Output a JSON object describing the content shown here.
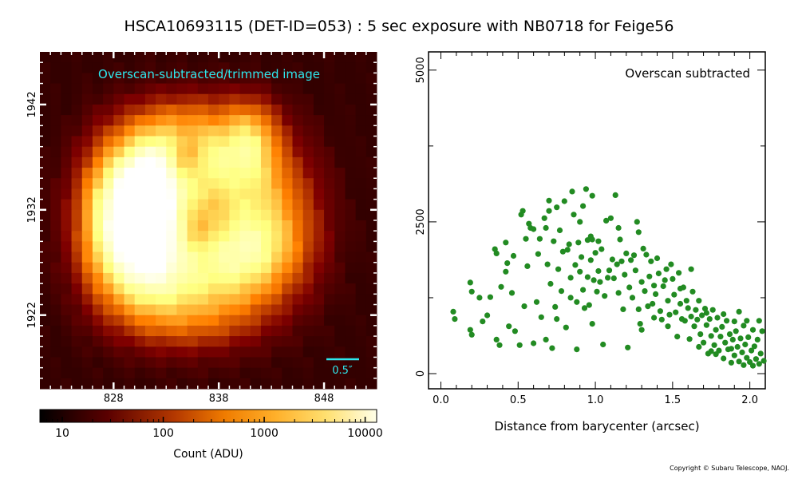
{
  "title": "HSCA10693115 (DET-ID=053) :  5 sec exposure with NB0718 for Feige56",
  "copyright": "Copyright © Subaru Telescope, NAOJ.",
  "image_panel": {
    "label": "Overscan-subtracted/trimmed image",
    "scale_bar": "0.5″",
    "x_ticks": [
      "828",
      "838",
      "848"
    ],
    "y_ticks": [
      "1942",
      "1932",
      "1922"
    ],
    "x_range": [
      821,
      853
    ],
    "y_range": [
      1915,
      1947
    ],
    "colorbar": {
      "label": "Count (ADU)",
      "ticks": [
        "10",
        "100",
        "1000",
        "10000"
      ],
      "scale": "log",
      "range": [
        6,
        13000
      ],
      "colormap": "afmhot"
    }
  },
  "chart_data": {
    "type": "scatter",
    "annotation": "Overscan subtracted",
    "xlabel": "Distance from barycenter (arcsec)",
    "ylabel": "",
    "xlim": [
      -0.08,
      2.1
    ],
    "ylim": [
      -250,
      5300
    ],
    "x_ticks": [
      "0.0",
      "0.5",
      "1.0",
      "1.5",
      "2.0"
    ],
    "y_ticks": [
      "0",
      "2500",
      "5000"
    ],
    "color": "#228b22",
    "grid": false,
    "series": [
      {
        "values": [
          [
            0.08,
            1020
          ],
          [
            0.09,
            900
          ],
          [
            0.19,
            1500
          ],
          [
            0.2,
            1350
          ],
          [
            0.19,
            720
          ],
          [
            0.2,
            640
          ],
          [
            0.25,
            1250
          ],
          [
            0.27,
            860
          ],
          [
            0.3,
            960
          ],
          [
            0.32,
            1260
          ],
          [
            0.35,
            2050
          ],
          [
            0.36,
            1980
          ],
          [
            0.36,
            560
          ],
          [
            0.38,
            470
          ],
          [
            0.39,
            1430
          ],
          [
            0.42,
            1680
          ],
          [
            0.42,
            2160
          ],
          [
            0.43,
            1820
          ],
          [
            0.44,
            780
          ],
          [
            0.46,
            1330
          ],
          [
            0.47,
            1940
          ],
          [
            0.48,
            700
          ],
          [
            0.51,
            470
          ],
          [
            0.52,
            2620
          ],
          [
            0.53,
            2680
          ],
          [
            0.54,
            1110
          ],
          [
            0.55,
            2220
          ],
          [
            0.56,
            1770
          ],
          [
            0.57,
            2470
          ],
          [
            0.58,
            2400
          ],
          [
            0.6,
            2380
          ],
          [
            0.6,
            500
          ],
          [
            0.62,
            1180
          ],
          [
            0.63,
            1970
          ],
          [
            0.64,
            2220
          ],
          [
            0.65,
            930
          ],
          [
            0.67,
            2560
          ],
          [
            0.68,
            2400
          ],
          [
            0.68,
            560
          ],
          [
            0.69,
            1800
          ],
          [
            0.7,
            2850
          ],
          [
            0.7,
            2680
          ],
          [
            0.71,
            1480
          ],
          [
            0.72,
            420
          ],
          [
            0.73,
            2180
          ],
          [
            0.75,
            900
          ],
          [
            0.75,
            2740
          ],
          [
            0.76,
            1720
          ],
          [
            0.77,
            2360
          ],
          [
            0.78,
            1360
          ],
          [
            0.79,
            2010
          ],
          [
            0.8,
            2840
          ],
          [
            0.81,
            760
          ],
          [
            0.82,
            2040
          ],
          [
            0.83,
            2130
          ],
          [
            0.84,
            1250
          ],
          [
            0.84,
            1580
          ],
          [
            0.85,
            3000
          ],
          [
            0.86,
            2620
          ],
          [
            0.87,
            1790
          ],
          [
            0.88,
            1180
          ],
          [
            0.88,
            400
          ],
          [
            0.89,
            2160
          ],
          [
            0.9,
            2500
          ],
          [
            0.9,
            1680
          ],
          [
            0.91,
            1920
          ],
          [
            0.92,
            1380
          ],
          [
            0.92,
            2760
          ],
          [
            0.93,
            1080
          ],
          [
            0.94,
            3040
          ],
          [
            0.95,
            2200
          ],
          [
            0.95,
            1590
          ],
          [
            0.96,
            1130
          ],
          [
            0.97,
            2260
          ],
          [
            0.97,
            1870
          ],
          [
            0.98,
            2210
          ],
          [
            0.98,
            2930
          ],
          [
            0.99,
            1540
          ],
          [
            1.0,
            1990
          ],
          [
            1.01,
            1350
          ],
          [
            1.02,
            2180
          ],
          [
            1.02,
            1690
          ],
          [
            1.03,
            1510
          ],
          [
            1.04,
            2050
          ],
          [
            1.05,
            480
          ],
          [
            1.06,
            1280
          ],
          [
            1.07,
            2520
          ],
          [
            1.08,
            1580
          ],
          [
            1.09,
            1700
          ],
          [
            1.1,
            2560
          ],
          [
            1.11,
            1880
          ],
          [
            1.12,
            1570
          ],
          [
            1.13,
            2940
          ],
          [
            1.14,
            1800
          ],
          [
            1.15,
            2400
          ],
          [
            1.15,
            1330
          ],
          [
            1.16,
            2210
          ],
          [
            1.17,
            1850
          ],
          [
            1.18,
            1060
          ],
          [
            1.19,
            1630
          ],
          [
            1.2,
            1980
          ],
          [
            1.21,
            430
          ],
          [
            1.22,
            1420
          ],
          [
            1.23,
            1870
          ],
          [
            1.24,
            1250
          ],
          [
            1.25,
            1950
          ],
          [
            1.26,
            1700
          ],
          [
            1.27,
            2500
          ],
          [
            1.28,
            2330
          ],
          [
            1.28,
            1060
          ],
          [
            1.29,
            820
          ],
          [
            1.3,
            1510
          ],
          [
            1.31,
            2060
          ],
          [
            1.32,
            1360
          ],
          [
            1.33,
            1960
          ],
          [
            1.34,
            1110
          ],
          [
            1.35,
            1600
          ],
          [
            1.36,
            1850
          ],
          [
            1.37,
            1150
          ],
          [
            1.38,
            1450
          ],
          [
            1.39,
            1310
          ],
          [
            1.4,
            1900
          ],
          [
            1.41,
            1650
          ],
          [
            1.42,
            1030
          ],
          [
            1.43,
            890
          ],
          [
            1.44,
            1440
          ],
          [
            1.45,
            1540
          ],
          [
            1.46,
            1720
          ],
          [
            1.47,
            1200
          ],
          [
            1.48,
            970
          ],
          [
            1.49,
            1800
          ],
          [
            1.5,
            1560
          ],
          [
            1.51,
            1300
          ],
          [
            1.52,
            1010
          ],
          [
            1.53,
            610
          ],
          [
            1.54,
            1660
          ],
          [
            1.55,
            1150
          ],
          [
            1.56,
            900
          ],
          [
            1.57,
            1420
          ],
          [
            1.58,
            870
          ],
          [
            1.59,
            1200
          ],
          [
            1.6,
            1080
          ],
          [
            1.61,
            570
          ],
          [
            1.62,
            940
          ],
          [
            1.63,
            1350
          ],
          [
            1.64,
            780
          ],
          [
            1.65,
            1050
          ],
          [
            1.66,
            890
          ],
          [
            1.67,
            1200
          ],
          [
            1.68,
            650
          ],
          [
            1.69,
            960
          ],
          [
            1.7,
            510
          ],
          [
            1.71,
            1070
          ],
          [
            1.72,
            800
          ],
          [
            1.73,
            330
          ],
          [
            1.74,
            900
          ],
          [
            1.75,
            620
          ],
          [
            1.76,
            1050
          ],
          [
            1.77,
            470
          ],
          [
            1.78,
            720
          ],
          [
            1.79,
            920
          ],
          [
            1.8,
            380
          ],
          [
            1.81,
            610
          ],
          [
            1.82,
            770
          ],
          [
            1.83,
            250
          ],
          [
            1.84,
            510
          ],
          [
            1.85,
            870
          ],
          [
            1.86,
            400
          ],
          [
            1.87,
            650
          ],
          [
            1.88,
            180
          ],
          [
            1.89,
            560
          ],
          [
            1.9,
            300
          ],
          [
            1.91,
            700
          ],
          [
            1.92,
            440
          ],
          [
            1.93,
            200
          ],
          [
            1.94,
            580
          ],
          [
            1.95,
            350
          ],
          [
            1.96,
            140
          ],
          [
            1.97,
            480
          ],
          [
            1.98,
            260
          ],
          [
            1.99,
            600
          ],
          [
            2.0,
            190
          ],
          [
            2.01,
            380
          ],
          [
            2.02,
            130
          ],
          [
            2.03,
            450
          ],
          [
            2.04,
            240
          ],
          [
            2.05,
            560
          ],
          [
            2.06,
            160
          ],
          [
            2.07,
            330
          ],
          [
            2.08,
            700
          ],
          [
            2.09,
            210
          ],
          [
            1.72,
            1000
          ],
          [
            1.75,
            370
          ],
          [
            1.83,
            980
          ],
          [
            1.9,
            860
          ],
          [
            1.96,
            790
          ],
          [
            2.02,
            720
          ],
          [
            2.06,
            870
          ],
          [
            1.67,
            440
          ],
          [
            1.78,
            320
          ],
          [
            1.88,
            410
          ],
          [
            1.93,
            1020
          ],
          [
            1.98,
            870
          ],
          [
            1.62,
            1720
          ],
          [
            1.55,
            1400
          ],
          [
            1.47,
            780
          ],
          [
            1.38,
            920
          ],
          [
            1.3,
            720
          ],
          [
            0.98,
            820
          ],
          [
            0.74,
            1100
          ]
        ]
      }
    ]
  }
}
